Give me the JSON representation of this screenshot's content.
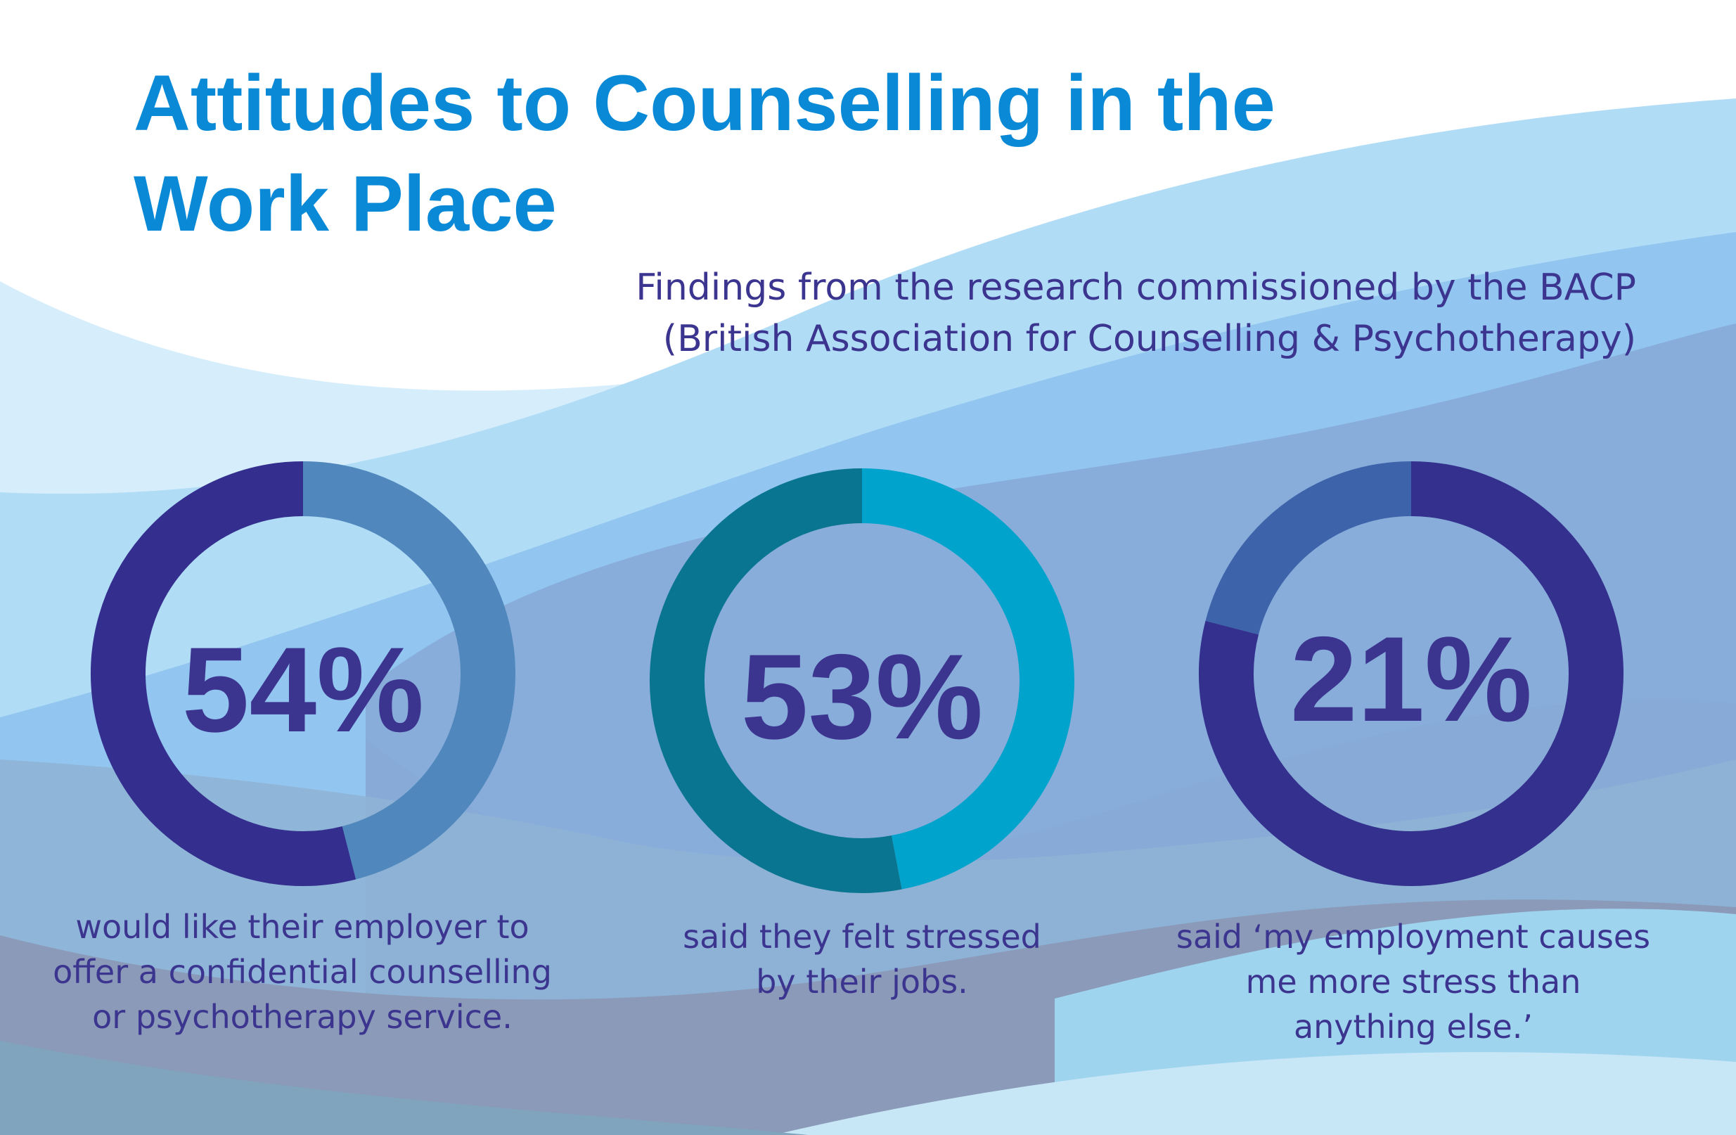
{
  "header": {
    "title_line1": "Attitudes to Counselling in the",
    "title_line2": "Work Place",
    "subtitle_line1": "Findings from the research commissioned by the BACP",
    "subtitle_line2": "(British Association for Counselling & Psychotherapy)"
  },
  "colors": {
    "title": "#0a8ad6",
    "text": "#3c3590"
  },
  "chart_data": [
    {
      "type": "pie",
      "variant": "donut",
      "value": 54,
      "value_label": "54%",
      "caption_lines": [
        "would like their employer to",
        "offer a confidential counselling",
        "or psychotherapy service."
      ],
      "highlight_color": "#342f8e",
      "remainder_color": "#5088bd"
    },
    {
      "type": "pie",
      "variant": "donut",
      "value": 53,
      "value_label": "53%",
      "caption_lines": [
        "said they felt stressed",
        "by their jobs."
      ],
      "highlight_color": "#0a7590",
      "remainder_color": "#00a3cb"
    },
    {
      "type": "pie",
      "variant": "donut",
      "value": 21,
      "value_label": "21%",
      "caption_lines": [
        "said ‘my employment causes",
        "me more stress than",
        "anything else.’"
      ],
      "highlight_color": "#3d63aa",
      "remainder_color": "#33308e"
    }
  ]
}
